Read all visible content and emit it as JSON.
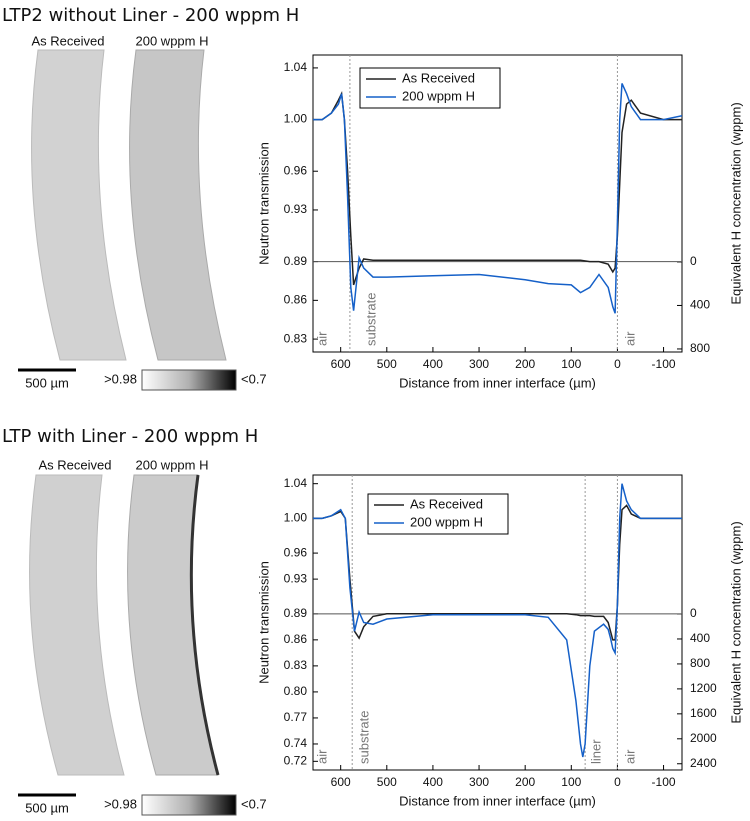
{
  "panels": [
    {
      "title": "LTP2 without Liner - 200 wppm H",
      "image_labels": [
        "As Received",
        "200 wppm H"
      ],
      "scale_bar": "500 µm",
      "colorbar_labels": [
        ">0.98",
        "<0.7"
      ]
    },
    {
      "title": "LTP with Liner - 200 wppm H",
      "image_labels": [
        "As Received",
        "200 wppm H"
      ],
      "scale_bar": "500 µm",
      "colorbar_labels": [
        ">0.98",
        "<0.7"
      ]
    }
  ],
  "chart_data": [
    {
      "type": "line",
      "xlabel": "Distance from inner interface (µm)",
      "ylabel": "Neutron transmission",
      "y2label": "Equivalent H concentration (wppm)",
      "xlim": [
        660,
        -140
      ],
      "xticks": [
        600,
        500,
        400,
        300,
        200,
        100,
        0,
        -100
      ],
      "ylim": [
        0.82,
        1.05
      ],
      "yticks": [
        0.83,
        0.86,
        0.89,
        0.93,
        0.96,
        {
          "value": 1.0,
          "label": "1.00"
        },
        1.04
      ],
      "y2lim": [
        828,
        -1903
      ],
      "y2ticks": [
        0,
        400,
        800
      ],
      "hline": 0.89,
      "vlines": [
        580,
        0
      ],
      "annotations": [
        "air",
        "substrate",
        "air"
      ],
      "x": [
        660,
        640,
        620,
        605,
        598,
        592,
        585,
        578,
        572,
        560,
        550,
        530,
        500,
        400,
        300,
        200,
        150,
        100,
        80,
        60,
        40,
        20,
        10,
        5,
        0,
        -5,
        -10,
        -20,
        -30,
        -50,
        -100,
        -140
      ],
      "series": [
        {
          "name": "As Received",
          "color": "#222222",
          "values": [
            1.0,
            1.0,
            1.005,
            1.015,
            1.02,
            1.0,
            0.96,
            0.91,
            0.872,
            0.885,
            0.892,
            0.891,
            0.891,
            0.891,
            0.891,
            0.891,
            0.891,
            0.891,
            0.891,
            0.89,
            0.89,
            0.888,
            0.882,
            0.885,
            0.91,
            0.95,
            0.99,
            1.012,
            1.015,
            1.005,
            1.0,
            1.0
          ]
        },
        {
          "name": "200 wppm H",
          "color": "#1560c8",
          "values": [
            1.0,
            1.0,
            1.005,
            1.012,
            1.02,
            1.0,
            0.94,
            0.87,
            0.852,
            0.893,
            0.885,
            0.878,
            0.878,
            0.879,
            0.88,
            0.876,
            0.873,
            0.872,
            0.866,
            0.87,
            0.88,
            0.87,
            0.855,
            0.85,
            0.92,
            1.0,
            1.028,
            1.02,
            1.01,
            1.0,
            1.0,
            1.003
          ]
        }
      ]
    },
    {
      "type": "line",
      "xlabel": "Distance from inner interface (µm)",
      "ylabel": "Neutron transmission",
      "y2label": "Equivalent H concentration (wppm)",
      "xlim": [
        660,
        -140
      ],
      "xticks": [
        600,
        500,
        400,
        300,
        200,
        100,
        0,
        -100
      ],
      "ylim": [
        0.71,
        1.05
      ],
      "yticks": [
        0.72,
        0.74,
        0.77,
        {
          "value": 0.8,
          "label": "0.80"
        },
        0.83,
        0.86,
        0.89,
        0.93,
        0.96,
        {
          "value": 1.0,
          "label": "1.00"
        },
        1.04
      ],
      "y2lim": [
        2500,
        -2228
      ],
      "y2ticks": [
        0,
        400,
        800,
        1200,
        1600,
        2000,
        2400
      ],
      "hline": 0.89,
      "vlines": [
        575,
        70,
        0
      ],
      "annotations": [
        "air",
        "substrate",
        "liner",
        "air"
      ],
      "x": [
        660,
        640,
        620,
        600,
        590,
        580,
        570,
        560,
        550,
        530,
        500,
        400,
        300,
        200,
        150,
        110,
        90,
        80,
        75,
        70,
        60,
        50,
        30,
        20,
        15,
        10,
        5,
        0,
        -5,
        -10,
        -20,
        -30,
        -50,
        -100,
        -140
      ],
      "series": [
        {
          "name": "As Received",
          "color": "#222222",
          "values": [
            1.0,
            1.0,
            1.003,
            1.008,
            1.0,
            0.93,
            0.87,
            0.862,
            0.875,
            0.887,
            0.89,
            0.89,
            0.89,
            0.89,
            0.89,
            0.89,
            0.889,
            0.888,
            0.888,
            0.888,
            0.888,
            0.887,
            0.887,
            0.88,
            0.87,
            0.86,
            0.86,
            0.9,
            0.97,
            1.01,
            1.015,
            1.005,
            1.0,
            1.0,
            1.0
          ]
        },
        {
          "name": "200 wppm H",
          "color": "#1560c8",
          "values": [
            1.0,
            1.0,
            1.003,
            1.01,
            1.0,
            0.92,
            0.87,
            0.892,
            0.88,
            0.878,
            0.884,
            0.889,
            0.889,
            0.889,
            0.886,
            0.86,
            0.79,
            0.74,
            0.725,
            0.74,
            0.83,
            0.87,
            0.878,
            0.872,
            0.862,
            0.85,
            0.845,
            0.9,
            1.0,
            1.04,
            1.02,
            1.01,
            1.0,
            1.0,
            1.0
          ]
        }
      ]
    }
  ]
}
